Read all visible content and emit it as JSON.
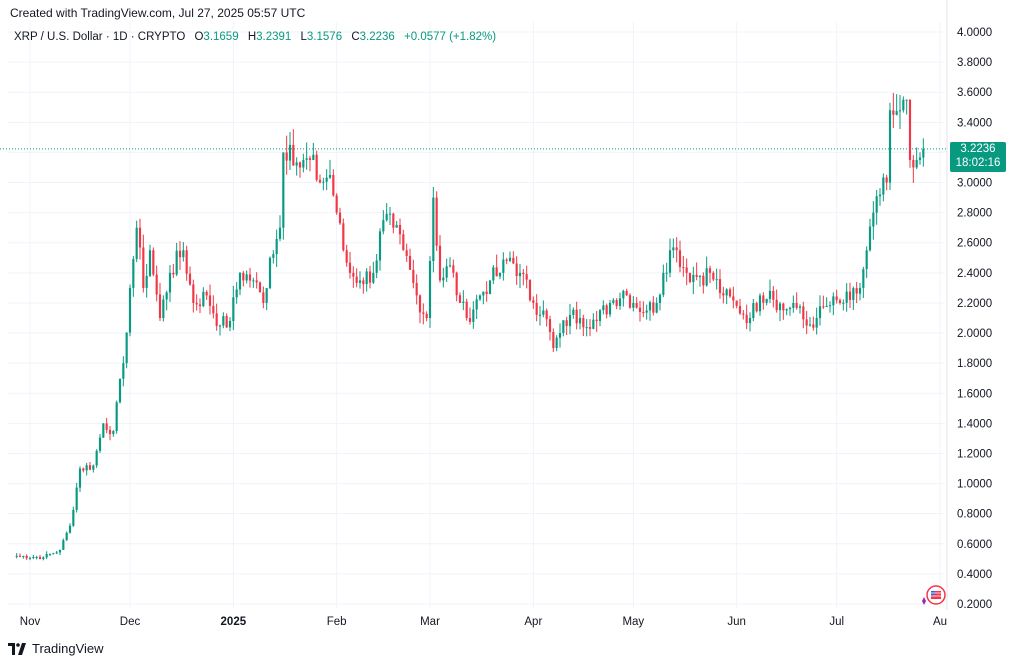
{
  "header": {
    "created_with": "Created with TradingView.com, Jul 27, 2025 05:57 UTC"
  },
  "legend": {
    "symbol": "XRP / U.S. Dollar · 1D · CRYPTO",
    "o_label": "O",
    "o_value": "3.1659",
    "h_label": "H",
    "h_value": "3.2391",
    "l_label": "L",
    "l_value": "3.1576",
    "c_label": "C",
    "c_value": "3.2236",
    "change": "+0.0577 (+1.82%)"
  },
  "price_tag": {
    "price": "3.2236",
    "countdown": "18:02:16"
  },
  "footer": {
    "brand": "TradingView"
  },
  "colors": {
    "up": "#089981",
    "down": "#f23645",
    "grid": "#f0f3fa",
    "last_price_line": "#089981"
  },
  "chart_data": {
    "type": "candlestick",
    "ylim": [
      0.2,
      4.0
    ],
    "y_ticks": [
      "4.0000",
      "3.8000",
      "3.6000",
      "3.4000",
      "3.2000",
      "3.0000",
      "2.8000",
      "2.6000",
      "2.4000",
      "2.2000",
      "2.0000",
      "1.8000",
      "1.6000",
      "1.4000",
      "1.2000",
      "1.0000",
      "0.8000",
      "0.6000",
      "0.4000",
      "0.2000"
    ],
    "x_ticks": [
      {
        "label": "Nov",
        "date": "2024-11-01"
      },
      {
        "label": "Dec",
        "date": "2024-12-01"
      },
      {
        "label": "2025",
        "date": "2025-01-01"
      },
      {
        "label": "Feb",
        "date": "2025-02-01"
      },
      {
        "label": "Mar",
        "date": "2025-03-01"
      },
      {
        "label": "Apr",
        "date": "2025-04-01"
      },
      {
        "label": "May",
        "date": "2025-05-01"
      },
      {
        "label": "Jun",
        "date": "2025-06-01"
      },
      {
        "label": "Jul",
        "date": "2025-07-01"
      },
      {
        "label": "Au",
        "date": "2025-08-01"
      }
    ],
    "start_date": "2024-10-28",
    "last_price": 3.2236,
    "close_path": [
      {
        "date": "2024-10-28",
        "close": 0.52
      },
      {
        "date": "2024-11-05",
        "close": 0.51
      },
      {
        "date": "2024-11-10",
        "close": 0.56
      },
      {
        "date": "2024-11-13",
        "close": 0.72
      },
      {
        "date": "2024-11-16",
        "close": 1.1
      },
      {
        "date": "2024-11-20",
        "close": 1.12
      },
      {
        "date": "2024-11-23",
        "close": 1.4
      },
      {
        "date": "2024-11-26",
        "close": 1.35
      },
      {
        "date": "2024-11-29",
        "close": 1.8
      },
      {
        "date": "2024-12-01",
        "close": 2.3
      },
      {
        "date": "2024-12-03",
        "close": 2.7
      },
      {
        "date": "2024-12-05",
        "close": 2.3
      },
      {
        "date": "2024-12-07",
        "close": 2.55
      },
      {
        "date": "2024-12-10",
        "close": 2.1
      },
      {
        "date": "2024-12-13",
        "close": 2.4
      },
      {
        "date": "2024-12-17",
        "close": 2.55
      },
      {
        "date": "2024-12-20",
        "close": 2.2
      },
      {
        "date": "2024-12-24",
        "close": 2.25
      },
      {
        "date": "2024-12-28",
        "close": 2.05
      },
      {
        "date": "2024-12-31",
        "close": 2.08
      },
      {
        "date": "2025-01-03",
        "close": 2.4
      },
      {
        "date": "2025-01-07",
        "close": 2.35
      },
      {
        "date": "2025-01-10",
        "close": 2.2
      },
      {
        "date": "2025-01-12",
        "close": 2.5
      },
      {
        "date": "2025-01-15",
        "close": 2.7
      },
      {
        "date": "2025-01-16",
        "close": 3.2
      },
      {
        "date": "2025-01-18",
        "close": 3.25
      },
      {
        "date": "2025-01-21",
        "close": 3.1
      },
      {
        "date": "2025-01-24",
        "close": 3.15
      },
      {
        "date": "2025-01-27",
        "close": 3.0
      },
      {
        "date": "2025-01-30",
        "close": 3.05
      },
      {
        "date": "2025-02-01",
        "close": 2.8
      },
      {
        "date": "2025-02-03",
        "close": 2.55
      },
      {
        "date": "2025-02-05",
        "close": 2.4
      },
      {
        "date": "2025-02-08",
        "close": 2.35
      },
      {
        "date": "2025-02-12",
        "close": 2.4
      },
      {
        "date": "2025-02-15",
        "close": 2.75
      },
      {
        "date": "2025-02-18",
        "close": 2.7
      },
      {
        "date": "2025-02-21",
        "close": 2.55
      },
      {
        "date": "2025-02-25",
        "close": 2.25
      },
      {
        "date": "2025-02-28",
        "close": 2.1
      },
      {
        "date": "2025-03-02",
        "close": 2.9
      },
      {
        "date": "2025-03-04",
        "close": 2.35
      },
      {
        "date": "2025-03-07",
        "close": 2.45
      },
      {
        "date": "2025-03-10",
        "close": 2.2
      },
      {
        "date": "2025-03-12",
        "close": 2.1
      },
      {
        "date": "2025-03-16",
        "close": 2.25
      },
      {
        "date": "2025-03-19",
        "close": 2.35
      },
      {
        "date": "2025-03-22",
        "close": 2.4
      },
      {
        "date": "2025-03-25",
        "close": 2.5
      },
      {
        "date": "2025-03-28",
        "close": 2.4
      },
      {
        "date": "2025-04-01",
        "close": 2.2
      },
      {
        "date": "2025-04-04",
        "close": 2.15
      },
      {
        "date": "2025-04-07",
        "close": 1.9
      },
      {
        "date": "2025-04-09",
        "close": 2.0
      },
      {
        "date": "2025-04-12",
        "close": 2.12
      },
      {
        "date": "2025-04-15",
        "close": 2.1
      },
      {
        "date": "2025-04-20",
        "close": 2.08
      },
      {
        "date": "2025-04-24",
        "close": 2.2
      },
      {
        "date": "2025-04-28",
        "close": 2.28
      },
      {
        "date": "2025-05-01",
        "close": 2.2
      },
      {
        "date": "2025-05-05",
        "close": 2.15
      },
      {
        "date": "2025-05-08",
        "close": 2.2
      },
      {
        "date": "2025-05-10",
        "close": 2.4
      },
      {
        "date": "2025-05-12",
        "close": 2.55
      },
      {
        "date": "2025-05-14",
        "close": 2.55
      },
      {
        "date": "2025-05-17",
        "close": 2.4
      },
      {
        "date": "2025-05-21",
        "close": 2.38
      },
      {
        "date": "2025-05-24",
        "close": 2.4
      },
      {
        "date": "2025-05-28",
        "close": 2.25
      },
      {
        "date": "2025-06-01",
        "close": 2.18
      },
      {
        "date": "2025-06-05",
        "close": 2.1
      },
      {
        "date": "2025-06-08",
        "close": 2.25
      },
      {
        "date": "2025-06-11",
        "close": 2.28
      },
      {
        "date": "2025-06-15",
        "close": 2.15
      },
      {
        "date": "2025-06-18",
        "close": 2.2
      },
      {
        "date": "2025-06-22",
        "close": 2.05
      },
      {
        "date": "2025-06-25",
        "close": 2.1
      },
      {
        "date": "2025-06-28",
        "close": 2.18
      },
      {
        "date": "2025-07-02",
        "close": 2.2
      },
      {
        "date": "2025-07-05",
        "close": 2.22
      },
      {
        "date": "2025-07-08",
        "close": 2.3
      },
      {
        "date": "2025-07-10",
        "close": 2.55
      },
      {
        "date": "2025-07-12",
        "close": 2.8
      },
      {
        "date": "2025-07-14",
        "close": 2.92
      },
      {
        "date": "2025-07-16",
        "close": 3.0
      },
      {
        "date": "2025-07-17",
        "close": 3.48
      },
      {
        "date": "2025-07-18",
        "close": 3.45
      },
      {
        "date": "2025-07-20",
        "close": 3.48
      },
      {
        "date": "2025-07-21",
        "close": 3.55
      },
      {
        "date": "2025-07-22",
        "close": 3.55
      },
      {
        "date": "2025-07-23",
        "close": 3.15
      },
      {
        "date": "2025-07-24",
        "close": 3.1
      },
      {
        "date": "2025-07-25",
        "close": 3.15
      },
      {
        "date": "2025-07-26",
        "close": 3.1659
      },
      {
        "date": "2025-07-27",
        "close": 3.2236
      }
    ]
  }
}
